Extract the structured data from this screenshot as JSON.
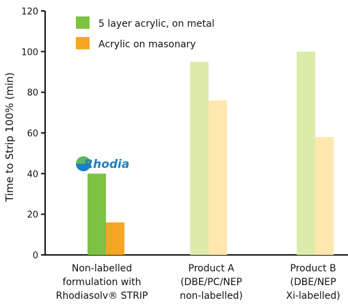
{
  "chart_data": {
    "type": "bar",
    "title": "",
    "xlabel": "",
    "ylabel": "Time to Strip 100% (min)",
    "ylim": [
      0,
      120
    ],
    "yticks": [
      0,
      20,
      40,
      60,
      80,
      100,
      120
    ],
    "grid": false,
    "legend_position": "top-left",
    "categories": [
      [
        "Non-labelled",
        "formulation with",
        "Rhodiasolv® STRIP"
      ],
      [
        "Product A",
        "(DBE/PC/NEP",
        "non-labelled)"
      ],
      [
        "Product B",
        "(DBE/NEP",
        "Xi-labelled)"
      ]
    ],
    "series": [
      {
        "name": "5 layer acrylic, on metal",
        "color": "#7dc242",
        "bar_colors": [
          "#7dc242",
          "#dcebaa",
          "#dcebaa"
        ],
        "values": [
          40,
          95,
          100
        ]
      },
      {
        "name": "Acrylic on masonary",
        "color": "#f6a623",
        "bar_colors": [
          "#f6a623",
          "#ffe7ad",
          "#ffe7ad"
        ],
        "values": [
          16,
          76,
          58
        ]
      }
    ]
  },
  "logo": {
    "text": "Rhodia",
    "icon": "rhodia-logo-icon",
    "color": "#1e7fc4"
  }
}
